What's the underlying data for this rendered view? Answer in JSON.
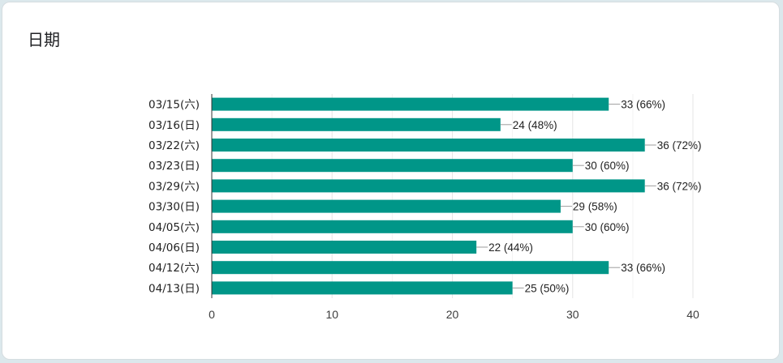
{
  "card": {
    "title": "日期"
  },
  "chart_data": {
    "type": "bar",
    "orientation": "horizontal",
    "title": "日期",
    "categories": [
      "03/15(六)",
      "03/16(日)",
      "03/22(六)",
      "03/23(日)",
      "03/29(六)",
      "03/30(日)",
      "04/05(六)",
      "04/06(日)",
      "04/12(六)",
      "04/13(日)"
    ],
    "values": [
      33,
      24,
      36,
      30,
      36,
      29,
      30,
      22,
      33,
      25
    ],
    "data_labels": [
      "33 (66%)",
      "24 (48%)",
      "36 (72%)",
      "30 (60%)",
      "36 (72%)",
      "29 (58%)",
      "30 (60%)",
      "22 (44%)",
      "33 (66%)",
      "25 (50%)"
    ],
    "xlim": [
      0,
      40
    ],
    "xticks": [
      0,
      10,
      20,
      30,
      40
    ],
    "grid": true,
    "legend": "none",
    "bar_color": "#009688"
  }
}
